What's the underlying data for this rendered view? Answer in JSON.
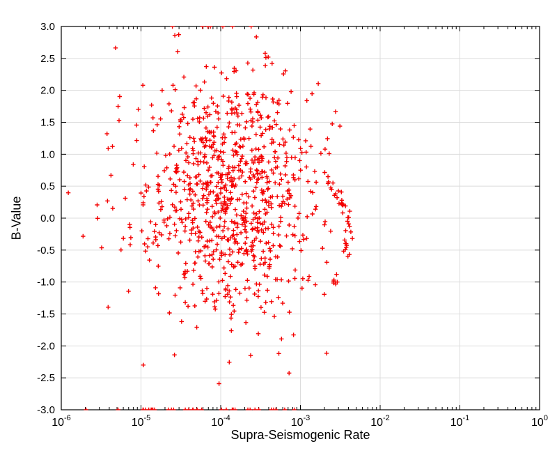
{
  "figure": {
    "background": "#ffffff",
    "marker_color": "#f40000",
    "grid_color": "#dcdcdc",
    "frame_color": "#000000",
    "tick_label_color": "#000000"
  },
  "chart_data": {
    "type": "scatter",
    "marker": "plus",
    "title": "",
    "xlabel": "Supra-Seismogenic Rate",
    "ylabel": "B-Value",
    "x_scale": "log",
    "x_range_exp": [
      -6,
      0
    ],
    "y_range": [
      -3,
      3
    ],
    "grid": true,
    "legend": "none",
    "x_tick_labels": [
      {
        "base": "10",
        "exp": "-6"
      },
      {
        "base": "10",
        "exp": "-5"
      },
      {
        "base": "10",
        "exp": "-4"
      },
      {
        "base": "10",
        "exp": "-3"
      },
      {
        "base": "10",
        "exp": "-2"
      },
      {
        "base": "10",
        "exp": "-1"
      },
      {
        "base": "10",
        "exp": "0"
      }
    ],
    "x_tick_exponents": [
      -6,
      -5,
      -4,
      -3,
      -2,
      -1,
      0
    ],
    "y_tick_values": [
      3.0,
      2.5,
      2.0,
      1.5,
      1.0,
      0.5,
      0.0,
      -0.5,
      -1.0,
      -1.5,
      -2.0,
      -2.5,
      -3.0
    ],
    "y_tick_labels": [
      "3.0",
      "2.5",
      "2.0",
      "1.5",
      "1.0",
      "0.5",
      "0.0",
      "-0.5",
      "-1.0",
      "-1.5",
      "-2.0",
      "-2.5",
      "-3.0"
    ],
    "n_points": 970,
    "point_cloud_summary": {
      "description": "Dense random cloud of red plus markers centered near x=1e-4, y=0.45; clipped rows of points along y=-3 bottom edge and a few at y=3 top edge; tight curved string of points near x=4e-3 between y=-1.1 and y=0.65; sparse outliers down to x=1e-6.",
      "logx_center": -3.88,
      "logx_spread": 0.55,
      "y_center": 0.42,
      "y_spread": 0.95
    },
    "generator": {
      "seed": 1234567,
      "populations": [
        {
          "name": "main-cloud",
          "kind": "gauss",
          "n": 880,
          "lx_mean": -3.88,
          "lx_std": 0.55,
          "lx_min": -5.95,
          "lx_max": -2.5,
          "y_mean": 0.42,
          "y_std": 0.95
        },
        {
          "name": "left-sparse",
          "kind": "band",
          "n": 10,
          "lx_min": -6.0,
          "lx_max": -5.0,
          "y_mean": 0.3,
          "y_std": 1.0,
          "y_min": -1.6,
          "y_max": 2.0
        },
        {
          "name": "right-arc",
          "kind": "arc",
          "n": 42,
          "y_min": -1.1,
          "y_max": 0.65,
          "lx_vertex": -2.4,
          "curvature": 0.22,
          "y_center": -0.25,
          "y_halfwidth": 0.85,
          "jitter": 0.03
        },
        {
          "name": "bottom-clipped-row",
          "kind": "edge",
          "n": 34,
          "y": -3.0,
          "lx_mean": -4.1,
          "lx_std": 0.85,
          "lx_min": -6.0,
          "lx_max": -2.8
        },
        {
          "name": "top-clipped-row",
          "kind": "edge",
          "n": 4,
          "y": 3.0,
          "lx_mean": -3.75,
          "lx_std": 0.3,
          "lx_min": -4.6,
          "lx_max": -3.3
        }
      ]
    }
  }
}
